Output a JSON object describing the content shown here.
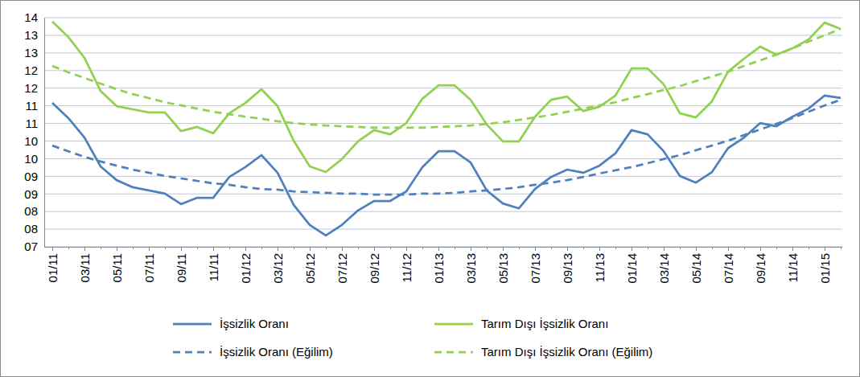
{
  "chart_data": {
    "type": "line",
    "categories": [
      "01/11",
      null,
      "03/11",
      null,
      "05/11",
      null,
      "07/11",
      null,
      "09/11",
      null,
      "11/11",
      null,
      "01/12",
      null,
      "03/12",
      null,
      "05/12",
      null,
      "07/12",
      null,
      "09/12",
      null,
      "11/12",
      null,
      "01/13",
      null,
      "03/13",
      null,
      "05/13",
      null,
      "07/13",
      null,
      "09/13",
      null,
      "11/13",
      null,
      "01/14",
      null,
      "03/14",
      null,
      "05/14",
      null,
      "07/14",
      null,
      "09/14",
      null,
      "11/14",
      null,
      "01/15",
      null
    ],
    "series": [
      {
        "name": "İşsizlik Oranı",
        "color": "#4f81bd",
        "line_style": "solid",
        "values": [
          11.08,
          10.65,
          10.1,
          9.28,
          8.89,
          8.69,
          8.6,
          8.51,
          8.21,
          8.39,
          8.39,
          8.98,
          9.26,
          9.6,
          9.1,
          8.19,
          7.62,
          7.32,
          7.62,
          8.03,
          8.3,
          8.3,
          8.57,
          9.26,
          9.71,
          9.71,
          9.39,
          8.6,
          8.23,
          8.09,
          8.64,
          8.98,
          9.19,
          9.1,
          9.3,
          9.65,
          10.31,
          10.19,
          9.71,
          9.01,
          8.82,
          9.12,
          9.8,
          10.1,
          10.51,
          10.42,
          10.69,
          10.92,
          11.29,
          11.22
        ]
      },
      {
        "name": "Tarım Dışı İşsizlik Oranı",
        "color": "#92d050",
        "line_style": "solid",
        "values": [
          13.39,
          12.95,
          12.36,
          11.42,
          10.99,
          10.9,
          10.81,
          10.81,
          10.28,
          10.4,
          10.22,
          10.79,
          11.08,
          11.47,
          10.99,
          10.01,
          9.28,
          9.12,
          9.49,
          9.99,
          10.31,
          10.19,
          10.51,
          11.2,
          11.58,
          11.58,
          11.17,
          10.47,
          9.99,
          9.99,
          10.69,
          11.17,
          11.26,
          10.85,
          10.97,
          11.29,
          12.06,
          12.06,
          11.61,
          10.79,
          10.67,
          11.13,
          11.97,
          12.34,
          12.68,
          12.45,
          12.63,
          12.88,
          13.36,
          13.18
        ]
      },
      {
        "name": "İşsizlik Oranı (Eğilim)",
        "color": "#4f81bd",
        "line_style": "dashed",
        "values": [
          9.87,
          9.71,
          9.55,
          9.42,
          9.3,
          9.19,
          9.1,
          9.01,
          8.94,
          8.87,
          8.8,
          8.76,
          8.69,
          8.64,
          8.62,
          8.57,
          8.55,
          8.53,
          8.51,
          8.51,
          8.48,
          8.48,
          8.48,
          8.51,
          8.51,
          8.53,
          8.57,
          8.6,
          8.64,
          8.69,
          8.76,
          8.82,
          8.89,
          8.98,
          9.08,
          9.17,
          9.26,
          9.37,
          9.49,
          9.6,
          9.74,
          9.87,
          10.01,
          10.17,
          10.33,
          10.49,
          10.65,
          10.83,
          11.01,
          11.17
        ]
      },
      {
        "name": "Tarım Dışı İşsizlik Oranı (Eğilim)",
        "color": "#92d050",
        "line_style": "dashed",
        "values": [
          12.13,
          11.95,
          11.79,
          11.63,
          11.47,
          11.33,
          11.22,
          11.1,
          11.01,
          10.92,
          10.83,
          10.76,
          10.69,
          10.63,
          10.56,
          10.51,
          10.47,
          10.44,
          10.42,
          10.4,
          10.38,
          10.38,
          10.38,
          10.38,
          10.4,
          10.42,
          10.44,
          10.49,
          10.53,
          10.6,
          10.67,
          10.74,
          10.83,
          10.92,
          11.01,
          11.1,
          11.22,
          11.33,
          11.45,
          11.56,
          11.7,
          11.83,
          11.97,
          12.13,
          12.29,
          12.45,
          12.63,
          12.82,
          13.0,
          13.18
        ]
      }
    ],
    "ylim": [
      7,
      13.5
    ],
    "yticks": [
      {
        "value": 7,
        "label": "07"
      },
      {
        "value": 7.5,
        "label": "08"
      },
      {
        "value": 8,
        "label": "08"
      },
      {
        "value": 8.5,
        "label": "09"
      },
      {
        "value": 9,
        "label": "09"
      },
      {
        "value": 9.5,
        "label": "10"
      },
      {
        "value": 10,
        "label": "10"
      },
      {
        "value": 10.5,
        "label": "11"
      },
      {
        "value": 11,
        "label": "11"
      },
      {
        "value": 11.5,
        "label": "12"
      },
      {
        "value": 12,
        "label": "12"
      },
      {
        "value": 12.5,
        "label": "13"
      },
      {
        "value": 13,
        "label": "13"
      },
      {
        "value": 13.5,
        "label": "14"
      }
    ],
    "grid": true,
    "legend": "bottom"
  }
}
